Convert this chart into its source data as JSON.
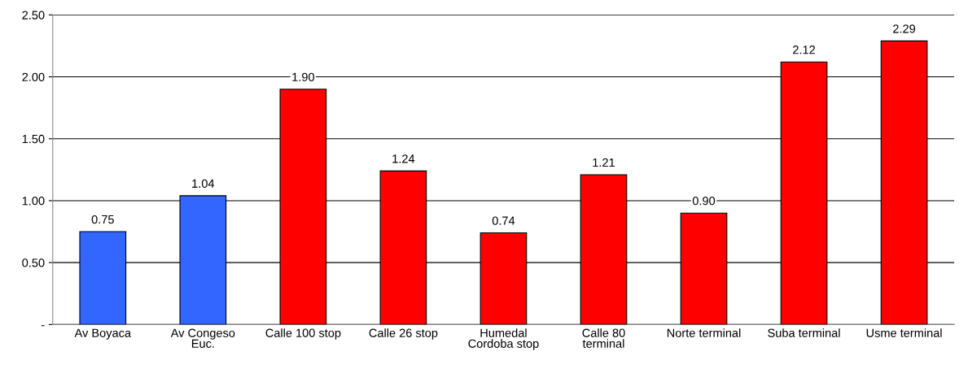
{
  "chart_data": {
    "type": "bar",
    "categories": [
      "Av Boyaca",
      "Av Congeso\nEuc.",
      "Calle 100 stop",
      "Calle 26 stop",
      "Humedal\nCordoba stop",
      "Calle 80\nterminal",
      "Norte terminal",
      "Suba terminal",
      "Usme terminal"
    ],
    "values": [
      0.75,
      1.04,
      1.9,
      1.24,
      0.74,
      1.21,
      0.9,
      2.12,
      2.29
    ],
    "value_labels": [
      "0.75",
      "1.04",
      "1.90",
      "1.24",
      "0.74",
      "1.21",
      "0.90",
      "2.12",
      "2.29"
    ],
    "colors": [
      "#3366ff",
      "#3366ff",
      "#ff0000",
      "#ff0000",
      "#ff0000",
      "#ff0000",
      "#ff0000",
      "#ff0000",
      "#ff0000"
    ],
    "ylim": [
      0,
      2.5
    ],
    "yticks": [
      {
        "value": 0,
        "label": "-"
      },
      {
        "value": 0.5,
        "label": "0.50"
      },
      {
        "value": 1.0,
        "label": "1.00"
      },
      {
        "value": 1.5,
        "label": "1.50"
      },
      {
        "value": 2.0,
        "label": "2.00"
      },
      {
        "value": 2.5,
        "label": "2.50"
      }
    ],
    "grid": "y",
    "legend": false
  }
}
